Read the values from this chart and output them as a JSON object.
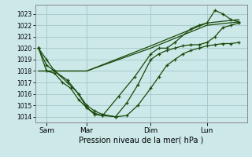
{
  "bg_color": "#cce8e8",
  "grid_color": "#aacccc",
  "line_color": "#1a4a0a",
  "title": "Pression niveau de la mer( hPa )",
  "ylim": [
    1013.5,
    1023.8
  ],
  "yticks": [
    1014,
    1015,
    1016,
    1017,
    1018,
    1019,
    1020,
    1021,
    1022,
    1023
  ],
  "xtick_labels": [
    "Sam",
    "Mar",
    "Dim",
    "Lun"
  ],
  "xtick_positions": [
    0.5,
    3.0,
    7.0,
    10.5
  ],
  "vline_positions": [
    0.5,
    3.0,
    7.0,
    10.5
  ],
  "xlim": [
    -0.2,
    13.0
  ],
  "line1_x": [
    0.0,
    0.5,
    1.0,
    1.8,
    2.5,
    3.0,
    3.5,
    4.0,
    4.8,
    5.5,
    6.2,
    7.0,
    7.5,
    8.0,
    8.5,
    9.0,
    9.5,
    10.0,
    10.5,
    11.0,
    11.5,
    12.0,
    12.5
  ],
  "line1_y": [
    1020.0,
    1019.0,
    1018.0,
    1017.0,
    1016.0,
    1015.0,
    1014.5,
    1014.2,
    1014.0,
    1014.1,
    1015.0,
    1016.5,
    1017.5,
    1018.5,
    1019.0,
    1019.5,
    1019.8,
    1020.0,
    1020.2,
    1020.3,
    1020.4,
    1020.4,
    1020.5
  ],
  "line2_x": [
    0.0,
    0.5,
    1.0,
    1.8,
    2.5,
    3.0,
    3.5,
    4.0,
    4.8,
    5.5,
    6.2,
    7.0,
    7.5,
    8.0,
    8.5,
    9.0,
    9.5,
    10.0,
    10.5,
    11.0,
    11.5,
    12.0,
    12.5
  ],
  "line2_y": [
    1020.0,
    1018.5,
    1018.0,
    1017.2,
    1016.0,
    1014.8,
    1014.3,
    1014.1,
    1014.0,
    1015.2,
    1016.8,
    1019.0,
    1019.5,
    1019.8,
    1020.0,
    1020.2,
    1020.3,
    1020.3,
    1020.5,
    1021.0,
    1021.8,
    1022.0,
    1022.2
  ],
  "line3_x": [
    0.0,
    0.5,
    1.0,
    1.5,
    2.0,
    2.5,
    3.0,
    3.5,
    4.0,
    5.0,
    6.0,
    7.0,
    7.5,
    8.0,
    8.5,
    9.5,
    10.0,
    10.5,
    11.0,
    11.5,
    12.0,
    12.5
  ],
  "line3_y": [
    1020.0,
    1018.0,
    1017.8,
    1017.0,
    1016.5,
    1015.5,
    1014.8,
    1014.2,
    1014.1,
    1015.8,
    1017.5,
    1019.5,
    1020.0,
    1020.0,
    1020.5,
    1021.7,
    1022.0,
    1022.2,
    1023.3,
    1023.0,
    1022.5,
    1022.3
  ],
  "line4_x": [
    0.0,
    3.0,
    7.0,
    10.5,
    12.5
  ],
  "line4_y": [
    1018.0,
    1018.0,
    1020.0,
    1022.0,
    1022.3
  ],
  "line5_x": [
    0.0,
    3.0,
    7.0,
    10.5,
    12.5
  ],
  "line5_y": [
    1018.0,
    1018.0,
    1020.2,
    1022.2,
    1022.5
  ]
}
